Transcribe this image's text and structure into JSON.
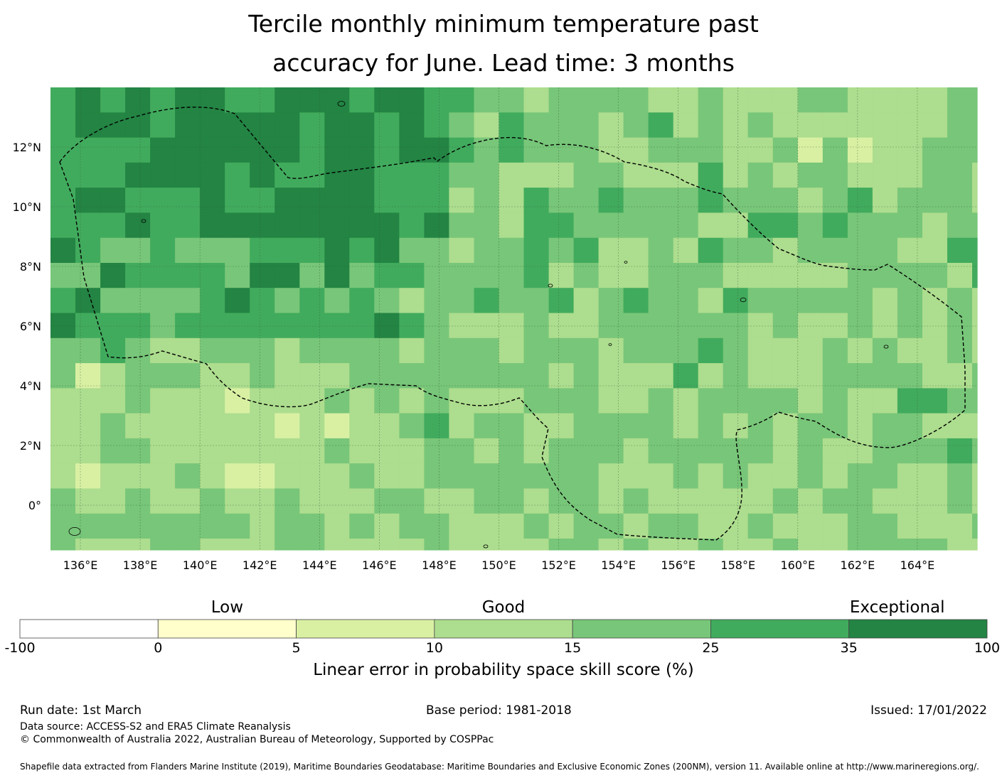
{
  "title_line1": "Tercile monthly minimum temperature past",
  "title_line2": "accuracy for June. Lead time: 3 months",
  "map": {
    "lon_labels": [
      "136°E",
      "138°E",
      "140°E",
      "142°E",
      "144°E",
      "146°E",
      "148°E",
      "150°E",
      "152°E",
      "154°E",
      "156°E",
      "158°E",
      "160°E",
      "162°E",
      "164°E"
    ],
    "lat_labels": [
      "12°N",
      "10°N",
      "8°N",
      "6°N",
      "4°N",
      "2°N",
      "0°"
    ],
    "lon_values": [
      136,
      138,
      140,
      142,
      144,
      146,
      148,
      150,
      152,
      154,
      156,
      158,
      160,
      162,
      164
    ],
    "lat_values": [
      12,
      10,
      8,
      6,
      4,
      2,
      0
    ],
    "extent": {
      "lon_min": 135,
      "lon_max": 166,
      "lat_min": -1.5,
      "lat_max": 14
    },
    "boundary_name": "EEZ boundary",
    "grid_lons": [
      135,
      135.833,
      136.667,
      137.5,
      138.333,
      139.167,
      140,
      140.833,
      141.667,
      142.5,
      143.333,
      144.167,
      145,
      145.833,
      146.667,
      147.5,
      148.333,
      149.167,
      150,
      150.833,
      151.667,
      152.5,
      153.333,
      154.167,
      155,
      155.833,
      156.667,
      157.5,
      158.333,
      159.167,
      160,
      160.833,
      161.667,
      162.5,
      163.333,
      164.167,
      165,
      165.833
    ],
    "grid_lats": [
      14,
      13.16,
      12.32,
      11.48,
      10.64,
      9.8,
      8.96,
      8.12,
      7.28,
      6.44,
      5.6,
      4.76,
      3.92,
      3.08,
      2.24,
      1.4,
      0.56,
      -0.28,
      -1.12,
      -1.5
    ]
  },
  "colorbar": {
    "categories": [
      {
        "label": "Low",
        "value": 2.5
      },
      {
        "label": "Good",
        "value": 12.5
      },
      {
        "label": "Exceptional",
        "value": 67.5
      }
    ],
    "ticks": [
      "-100",
      "0",
      "5",
      "10",
      "15",
      "25",
      "35",
      "100"
    ],
    "colors": [
      "#ffffff",
      "#ffffcc",
      "#d9f0a3",
      "#addd8e",
      "#78c679",
      "#41ab5d",
      "#238443"
    ],
    "label": "Linear error in probability space skill score (%)"
  },
  "footer": {
    "run_date": "Run date: 1st March",
    "base_period": "Base period: 1981-2018",
    "issued": "Issued: 17/01/2022",
    "data_source": "Data source: ACCESS-S2 and ERA5 Climate Reanalysis",
    "copyright": "© Commonwealth of Australia 2022, Australian Bureau of Meteorology, Supported by COSPPac",
    "shapefile": "Shapefile data extracted from Flanders Marine Institute (2019), Maritime Boundaries Geodatabase: Maritime Boundaries and Exclusive Economic Zones (200NM), version 11. Available online at http://www.marineregions.org/."
  }
}
